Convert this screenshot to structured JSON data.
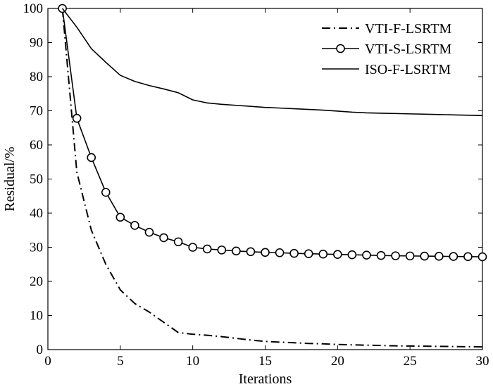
{
  "chart_data": {
    "type": "line",
    "xlabel": "Iterations",
    "ylabel": "Residual/%",
    "xlim": [
      0,
      30
    ],
    "ylim": [
      0,
      100
    ],
    "xticks": [
      0,
      5,
      10,
      15,
      20,
      25,
      30
    ],
    "yticks": [
      0,
      10,
      20,
      30,
      40,
      50,
      60,
      70,
      80,
      90,
      100
    ],
    "grid": false,
    "legend_position": "top-right",
    "series": [
      {
        "name": "VTI-F-LSRTM",
        "style": "dash-dot",
        "marker": "none",
        "color": "#000000",
        "x": [
          1,
          2,
          3,
          4,
          5,
          6,
          7,
          8,
          9,
          10,
          11,
          12,
          13,
          14,
          15,
          16,
          17,
          18,
          19,
          20,
          21,
          22,
          23,
          24,
          25,
          26,
          27,
          28,
          29,
          30
        ],
        "y": [
          100,
          52,
          35,
          25,
          17.5,
          13.5,
          11,
          8,
          5,
          4.5,
          4.2,
          3.8,
          3.3,
          2.8,
          2.4,
          2.2,
          2.0,
          1.8,
          1.7,
          1.5,
          1.4,
          1.3,
          1.2,
          1.1,
          1.05,
          1.0,
          0.95,
          0.9,
          0.85,
          0.8
        ]
      },
      {
        "name": "VTI-S-LSRTM",
        "style": "solid",
        "marker": "circle",
        "color": "#000000",
        "x": [
          1,
          2,
          3,
          4,
          5,
          6,
          7,
          8,
          9,
          10,
          11,
          12,
          13,
          14,
          15,
          16,
          17,
          18,
          19,
          20,
          21,
          22,
          23,
          24,
          25,
          26,
          27,
          28,
          29,
          30
        ],
        "y": [
          100,
          67.8,
          56.3,
          46.1,
          38.8,
          36.4,
          34.4,
          32.8,
          31.6,
          30.0,
          29.5,
          29.2,
          28.9,
          28.7,
          28.5,
          28.4,
          28.2,
          28.1,
          28.0,
          27.9,
          27.8,
          27.7,
          27.6,
          27.5,
          27.45,
          27.4,
          27.35,
          27.3,
          27.25,
          27.2
        ]
      },
      {
        "name": "ISO-F-LSRTM",
        "style": "solid",
        "marker": "none",
        "color": "#000000",
        "x": [
          1,
          2,
          3,
          4,
          5,
          6,
          7,
          8,
          9,
          10,
          11,
          12,
          13,
          14,
          15,
          16,
          17,
          18,
          19,
          20,
          21,
          22,
          23,
          24,
          25,
          26,
          27,
          28,
          29,
          30
        ],
        "y": [
          100,
          94.5,
          88.2,
          84.2,
          80.4,
          78.6,
          77.4,
          76.4,
          75.3,
          73.2,
          72.3,
          71.9,
          71.6,
          71.3,
          71.0,
          70.8,
          70.6,
          70.4,
          70.2,
          69.9,
          69.6,
          69.4,
          69.3,
          69.2,
          69.1,
          69.0,
          68.9,
          68.8,
          68.7,
          68.6
        ]
      }
    ]
  }
}
